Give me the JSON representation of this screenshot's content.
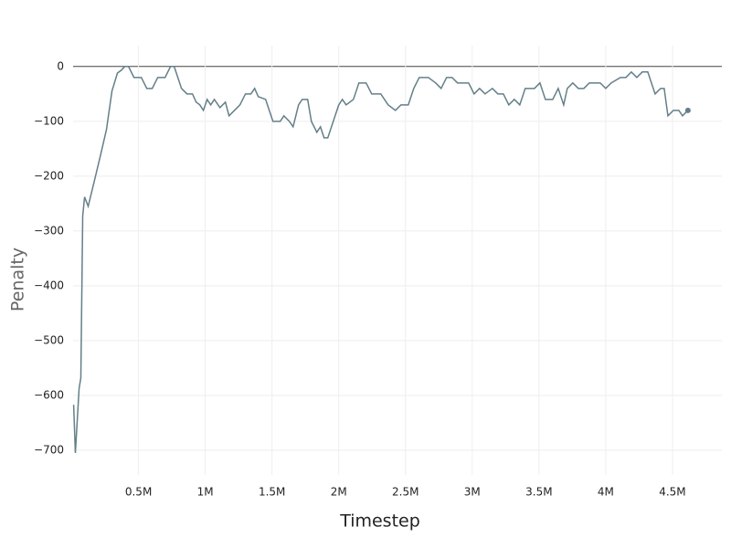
{
  "chart_data": {
    "type": "line",
    "x_label": "Timestep",
    "y_label": "Penalty",
    "color": "#647f89",
    "grid": true,
    "zeroline": true,
    "end_marker": true,
    "xlim": [
      10000,
      4870000
    ],
    "ylim": [
      -745,
      38
    ],
    "xticks": [
      {
        "value": 500000,
        "label": "0.5M"
      },
      {
        "value": 1000000,
        "label": "1M"
      },
      {
        "value": 1500000,
        "label": "1.5M"
      },
      {
        "value": 2000000,
        "label": "2M"
      },
      {
        "value": 2500000,
        "label": "2.5M"
      },
      {
        "value": 3000000,
        "label": "3M"
      },
      {
        "value": 3500000,
        "label": "3.5M"
      },
      {
        "value": 4000000,
        "label": "4M"
      },
      {
        "value": 4500000,
        "label": "4.5M"
      }
    ],
    "yticks": [
      0,
      {
        "value": -100,
        "label": "−100"
      },
      {
        "value": -200,
        "label": "−200"
      },
      {
        "value": -300,
        "label": "−300"
      },
      {
        "value": -400,
        "label": "−400"
      },
      {
        "value": -500,
        "label": "−500"
      },
      {
        "value": -600,
        "label": "−600"
      },
      {
        "value": -700,
        "label": "−700"
      }
    ],
    "x": [
      14000,
      27000,
      55000,
      68000,
      82000,
      96000,
      123000,
      151000,
      178000,
      219000,
      260000,
      301000,
      342000,
      370000,
      397000,
      425000,
      466000,
      521000,
      562000,
      603000,
      644000,
      699000,
      740000,
      767000,
      822000,
      863000,
      904000,
      932000,
      959000,
      986000,
      1014000,
      1041000,
      1068000,
      1110000,
      1151000,
      1178000,
      1219000,
      1260000,
      1301000,
      1342000,
      1370000,
      1397000,
      1452000,
      1507000,
      1562000,
      1589000,
      1630000,
      1658000,
      1699000,
      1726000,
      1767000,
      1795000,
      1836000,
      1863000,
      1890000,
      1918000,
      1959000,
      2000000,
      2027000,
      2055000,
      2110000,
      2151000,
      2205000,
      2247000,
      2315000,
      2370000,
      2425000,
      2466000,
      2521000,
      2562000,
      2603000,
      2671000,
      2726000,
      2767000,
      2808000,
      2849000,
      2890000,
      2973000,
      3014000,
      3055000,
      3096000,
      3151000,
      3192000,
      3233000,
      3274000,
      3315000,
      3356000,
      3397000,
      3466000,
      3507000,
      3548000,
      3603000,
      3644000,
      3685000,
      3712000,
      3753000,
      3795000,
      3836000,
      3877000,
      3959000,
      4000000,
      4041000,
      4110000,
      4151000,
      4192000,
      4233000,
      4274000,
      4315000,
      4370000,
      4411000,
      4438000,
      4466000,
      4507000,
      4548000,
      4575000,
      4616000
    ],
    "values": [
      -617,
      -705,
      -587,
      -568,
      -273,
      -238,
      -255,
      -227,
      -200,
      -158,
      -115,
      -45,
      -12,
      -7,
      0,
      0,
      -20,
      -20,
      -40,
      -40,
      -20,
      -20,
      0,
      0,
      -40,
      -50,
      -50,
      -65,
      -70,
      -80,
      -60,
      -70,
      -60,
      -75,
      -65,
      -90,
      -80,
      -70,
      -50,
      -50,
      -40,
      -55,
      -60,
      -100,
      -100,
      -90,
      -100,
      -110,
      -70,
      -60,
      -60,
      -100,
      -120,
      -110,
      -130,
      -130,
      -100,
      -70,
      -60,
      -70,
      -60,
      -30,
      -30,
      -50,
      -50,
      -70,
      -80,
      -70,
      -70,
      -40,
      -20,
      -20,
      -30,
      -40,
      -20,
      -20,
      -30,
      -30,
      -50,
      -40,
      -50,
      -40,
      -50,
      -50,
      -70,
      -60,
      -70,
      -40,
      -40,
      -30,
      -60,
      -60,
      -40,
      -70,
      -40,
      -30,
      -40,
      -40,
      -30,
      -30,
      -40,
      -30,
      -20,
      -20,
      -10,
      -20,
      -10,
      -10,
      -50,
      -40,
      -40,
      -90,
      -80,
      -80,
      -90,
      -80
    ]
  }
}
